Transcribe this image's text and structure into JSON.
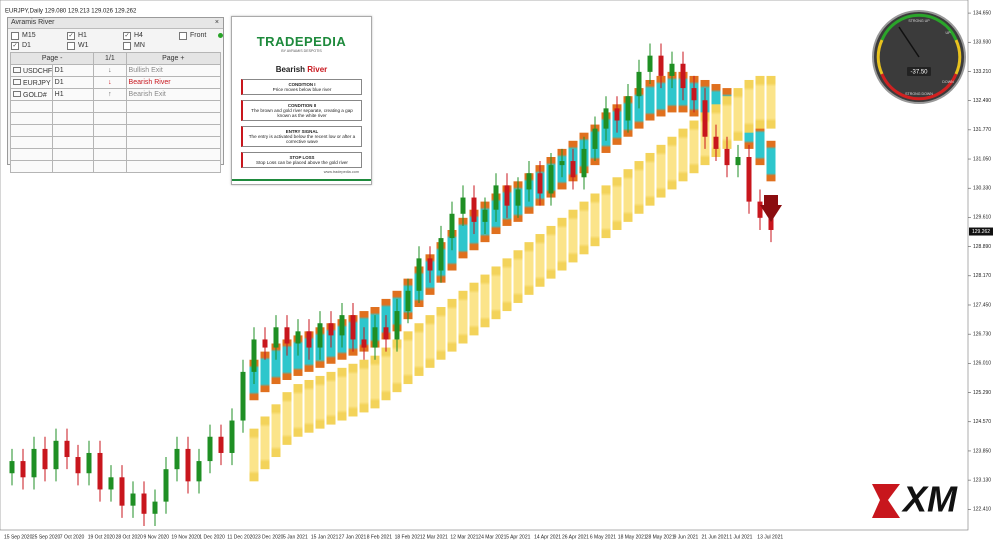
{
  "chart_data": {
    "type": "candlestick",
    "symbol_info": "EURJPY,Daily  129.080 129.213 129.026 129.262",
    "up_color": "#1f8f24",
    "down_color": "#c8161d",
    "open": [
      123.3,
      123.6,
      123.2,
      123.9,
      123.4,
      124.1,
      123.7,
      123.3,
      123.8,
      122.9,
      123.2,
      122.5,
      122.8,
      122.3,
      122.6,
      123.4,
      123.9,
      123.1,
      123.6,
      124.2,
      123.8,
      124.6,
      125.8,
      126.6,
      126.4,
      126.9,
      126.5,
      126.8,
      126.4,
      127.0,
      126.7,
      127.2,
      126.6,
      126.4,
      126.9,
      126.6,
      127.3,
      127.8,
      128.6,
      128.3,
      129.1,
      129.7,
      130.1,
      129.5,
      129.8,
      130.4,
      129.9,
      130.3,
      130.7,
      130.2,
      130.9,
      131.0,
      130.6,
      131.3,
      131.8,
      132.3,
      132.0,
      132.6,
      133.2,
      133.6,
      133.1,
      133.4,
      132.8,
      132.5,
      131.6,
      131.3,
      130.9,
      131.1,
      130.0,
      129.6
    ],
    "high": [
      123.9,
      123.9,
      124.2,
      124.2,
      124.4,
      124.4,
      124.0,
      124.1,
      124.1,
      123.5,
      123.5,
      123.1,
      123.1,
      122.9,
      123.7,
      124.2,
      124.2,
      123.9,
      124.5,
      124.5,
      124.9,
      126.1,
      126.9,
      126.9,
      127.2,
      127.2,
      127.1,
      127.1,
      127.3,
      127.3,
      127.5,
      127.5,
      126.9,
      127.2,
      127.2,
      127.6,
      128.1,
      128.9,
      128.9,
      129.4,
      130.0,
      130.4,
      130.4,
      130.1,
      130.7,
      130.7,
      130.6,
      131.0,
      131.0,
      131.2,
      131.3,
      131.3,
      131.6,
      132.1,
      132.6,
      132.6,
      132.9,
      133.5,
      133.9,
      133.9,
      133.7,
      133.7,
      133.1,
      132.8,
      131.9,
      131.6,
      131.4,
      131.4,
      130.3,
      129.9
    ],
    "low": [
      123.0,
      122.9,
      122.9,
      123.1,
      123.1,
      123.4,
      123.0,
      123.0,
      122.6,
      122.6,
      122.2,
      122.2,
      122.0,
      122.0,
      122.3,
      123.1,
      122.8,
      122.8,
      123.3,
      123.5,
      123.5,
      124.3,
      125.5,
      126.1,
      126.1,
      126.2,
      126.2,
      126.1,
      126.1,
      126.4,
      126.4,
      126.3,
      126.1,
      126.1,
      126.3,
      126.3,
      127.0,
      127.5,
      128.0,
      128.0,
      128.8,
      129.4,
      129.2,
      129.2,
      129.5,
      129.6,
      129.6,
      130.0,
      129.9,
      129.9,
      130.6,
      130.3,
      130.3,
      131.0,
      131.5,
      131.7,
      131.7,
      132.3,
      132.9,
      132.8,
      132.8,
      132.5,
      132.2,
      131.3,
      131.0,
      130.6,
      130.6,
      129.7,
      129.3,
      129.0
    ],
    "close": [
      123.6,
      123.2,
      123.9,
      123.4,
      124.1,
      123.7,
      123.3,
      123.8,
      122.9,
      123.2,
      122.5,
      122.8,
      122.3,
      122.6,
      123.4,
      123.9,
      123.1,
      123.6,
      124.2,
      123.8,
      124.6,
      125.8,
      126.6,
      126.4,
      126.9,
      126.5,
      126.8,
      126.4,
      127.0,
      126.7,
      127.2,
      126.6,
      126.4,
      126.9,
      126.6,
      127.3,
      127.8,
      128.6,
      128.3,
      129.1,
      129.7,
      130.1,
      129.5,
      129.8,
      130.4,
      129.9,
      130.3,
      130.7,
      130.2,
      130.9,
      131.0,
      130.6,
      131.3,
      131.8,
      132.3,
      132.0,
      132.6,
      133.2,
      133.6,
      133.1,
      133.4,
      132.8,
      132.5,
      131.6,
      131.3,
      130.9,
      131.1,
      130.0,
      129.6,
      129.3
    ],
    "rivers": [
      {
        "color": "#2ec6cc",
        "edge_color": "#e0701e",
        "upper": [
          null,
          null,
          null,
          null,
          null,
          null,
          null,
          null,
          null,
          null,
          null,
          null,
          null,
          null,
          null,
          null,
          null,
          null,
          null,
          null,
          null,
          null,
          126.1,
          126.3,
          126.5,
          126.6,
          126.7,
          126.8,
          126.9,
          127.0,
          127.1,
          127.2,
          127.3,
          127.4,
          127.6,
          127.8,
          128.1,
          128.4,
          128.7,
          129.0,
          129.3,
          129.6,
          129.8,
          130.0,
          130.2,
          130.4,
          130.5,
          130.7,
          130.9,
          131.1,
          131.3,
          131.5,
          131.7,
          131.9,
          132.2,
          132.4,
          132.6,
          132.8,
          133.0,
          133.1,
          133.2,
          133.2,
          133.1,
          133.0,
          132.9,
          132.8,
          132.6,
          132.3,
          131.9,
          131.5
        ],
        "lower": [
          null,
          null,
          null,
          null,
          null,
          null,
          null,
          null,
          null,
          null,
          null,
          null,
          null,
          null,
          null,
          null,
          null,
          null,
          null,
          null,
          null,
          null,
          125.1,
          125.3,
          125.5,
          125.6,
          125.7,
          125.8,
          125.9,
          126.0,
          126.1,
          126.2,
          126.3,
          126.4,
          126.6,
          126.8,
          127.1,
          127.4,
          127.7,
          128.0,
          128.3,
          128.6,
          128.8,
          129.0,
          129.2,
          129.4,
          129.5,
          129.7,
          129.9,
          130.1,
          130.3,
          130.5,
          130.7,
          130.9,
          131.2,
          131.4,
          131.6,
          131.8,
          132.0,
          132.1,
          132.2,
          132.2,
          132.1,
          132.0,
          131.9,
          131.8,
          131.6,
          131.3,
          130.9,
          130.5
        ]
      },
      {
        "color": "#fbe48a",
        "edge_color": "#f3d35a",
        "upper": [
          null,
          null,
          null,
          null,
          null,
          null,
          null,
          null,
          null,
          null,
          null,
          null,
          null,
          null,
          null,
          null,
          null,
          null,
          null,
          null,
          null,
          null,
          124.4,
          124.7,
          125.0,
          125.3,
          125.5,
          125.6,
          125.7,
          125.8,
          125.9,
          126.0,
          126.1,
          126.2,
          126.4,
          126.6,
          126.8,
          127.0,
          127.2,
          127.4,
          127.6,
          127.8,
          128.0,
          128.2,
          128.4,
          128.6,
          128.8,
          129.0,
          129.2,
          129.4,
          129.6,
          129.8,
          130.0,
          130.2,
          130.4,
          130.6,
          130.8,
          131.0,
          131.2,
          131.4,
          131.6,
          131.8,
          132.0,
          132.2,
          132.4,
          132.6,
          132.8,
          133.0,
          133.1,
          133.1
        ],
        "lower": [
          null,
          null,
          null,
          null,
          null,
          null,
          null,
          null,
          null,
          null,
          null,
          null,
          null,
          null,
          null,
          null,
          null,
          null,
          null,
          null,
          null,
          null,
          123.1,
          123.4,
          123.7,
          124.0,
          124.2,
          124.3,
          124.4,
          124.5,
          124.6,
          124.7,
          124.8,
          124.9,
          125.1,
          125.3,
          125.5,
          125.7,
          125.9,
          126.1,
          126.3,
          126.5,
          126.7,
          126.9,
          127.1,
          127.3,
          127.5,
          127.7,
          127.9,
          128.1,
          128.3,
          128.5,
          128.7,
          128.9,
          129.1,
          129.3,
          129.5,
          129.7,
          129.9,
          130.1,
          130.3,
          130.5,
          130.7,
          130.9,
          131.1,
          131.3,
          131.5,
          131.7,
          131.8,
          131.8
        ]
      }
    ],
    "ylim": [
      121.9,
      134.8
    ],
    "yticks": [
      {
        "value": 122.41,
        "label": "122.410"
      },
      {
        "value": 123.13,
        "label": "123.130"
      },
      {
        "value": 123.85,
        "label": "123.850"
      },
      {
        "value": 124.57,
        "label": "124.570"
      },
      {
        "value": 125.29,
        "label": "125.290"
      },
      {
        "value": 126.01,
        "label": "126.010"
      },
      {
        "value": 126.73,
        "label": "126.730"
      },
      {
        "value": 127.45,
        "label": "127.450"
      },
      {
        "value": 128.17,
        "label": "128.170"
      },
      {
        "value": 128.89,
        "label": "128.890"
      },
      {
        "value": 129.61,
        "label": "129.610"
      },
      {
        "value": 130.33,
        "label": "130.330"
      },
      {
        "value": 131.05,
        "label": "131.050"
      },
      {
        "value": 131.77,
        "label": "131.770"
      },
      {
        "value": 132.49,
        "label": "132.490"
      },
      {
        "value": 133.21,
        "label": "133.210"
      },
      {
        "value": 133.93,
        "label": "133.930"
      },
      {
        "value": 134.65,
        "label": "134.650"
      }
    ],
    "last_price": 129.262,
    "x_tick_labels": [
      "15 Sep 2020",
      "25 Sep 2020",
      "7 Oct 2020",
      "19 Oct 2020",
      "28 Oct 2020",
      "9 Nov 2020",
      "19 Nov 2020",
      "1 Dec 2020",
      "11 Dec 2020",
      "23 Dec 2020",
      "5 Jan 2021",
      "15 Jan 2021",
      "27 Jan 2021",
      "8 Feb 2021",
      "18 Feb 2021",
      "2 Mar 2021",
      "12 Mar 2021",
      "24 Mar 2021",
      "5 Apr 2021",
      "14 Apr 2021",
      "26 Apr 2021",
      "6 May 2021",
      "18 May 2021",
      "28 May 2021",
      "9 Jun 2021",
      "21 Jun 2021",
      "1 Jul 2021",
      "13 Jul 2021"
    ]
  },
  "panel": {
    "title": "Avramis River",
    "timeframes": [
      {
        "label": "M15",
        "checked": false
      },
      {
        "label": "H1",
        "checked": true
      },
      {
        "label": "H4",
        "checked": true
      },
      {
        "label": "Front",
        "checked": false
      },
      {
        "label": "D1",
        "checked": true
      },
      {
        "label": "W1",
        "checked": false
      },
      {
        "label": "MN",
        "checked": false
      }
    ],
    "page_prev": "Page -",
    "page_info": "1/1",
    "page_next": "Page +",
    "rows": [
      {
        "symbol": "USDCHF",
        "timeframe": "D1",
        "arrow": "↓",
        "arrow_color": "#666666",
        "signal": "Bullish Exit",
        "signal_color": "#8a8a8a"
      },
      {
        "symbol": "EURJPY",
        "timeframe": "D1",
        "arrow": "↓",
        "arrow_color": "#c8161d",
        "signal": "Bearish River",
        "signal_color": "#c8161d"
      },
      {
        "symbol": "GOLD#",
        "timeframe": "H1",
        "arrow": "↑",
        "arrow_color": "#666666",
        "signal": "Bearish Exit",
        "signal_color": "#8a8a8a"
      }
    ]
  },
  "card": {
    "brand": "TRADEPEDIA",
    "byline": "BY AVRAMIS DESPOTIS",
    "title_a": "Bearish",
    "title_b": "River",
    "items": [
      {
        "heading": "CONDITION I",
        "text": "Price moves below blue river"
      },
      {
        "heading": "CONDITION II",
        "text": "The brown and gold river separate, creating a gap known as the white river"
      },
      {
        "heading": "ENTRY SIGNAL",
        "text": "The entry is activated below the recent low or after a corrective wave"
      },
      {
        "heading": "STOP LOSS",
        "text": "Stop Loss can be placed above the gold river"
      }
    ],
    "url": "www.tradepedia.com"
  },
  "gauge": {
    "lim": [
      -100,
      100
    ],
    "reading": {
      "value": -37.5,
      "label": "-37.50"
    },
    "labels": [
      "STRONG UP",
      "UP",
      "DOWN",
      "STRONG DOWN"
    ]
  },
  "logo": "XM"
}
